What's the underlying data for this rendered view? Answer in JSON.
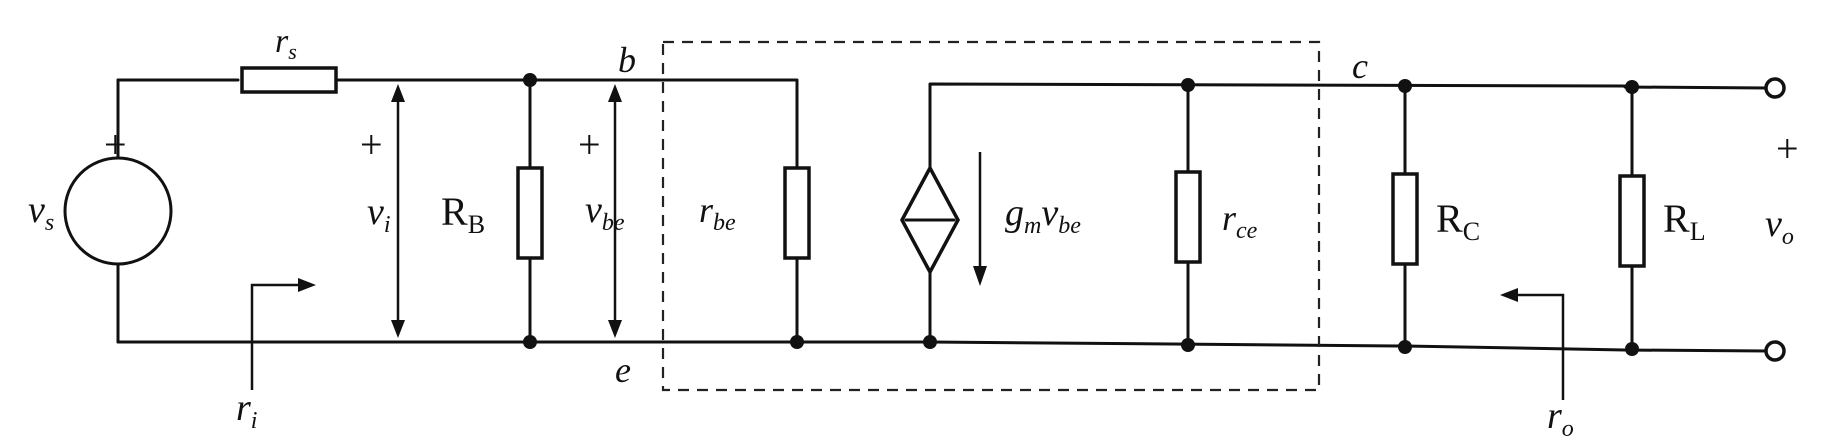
{
  "labels": {
    "rs": {
      "main": "r",
      "sub": "s"
    },
    "vs": {
      "main": "v",
      "sub": "s"
    },
    "vi": {
      "main": "v",
      "sub": "i"
    },
    "RB": {
      "main": "R",
      "sub": "B"
    },
    "vbe": {
      "main": "v",
      "sub": "be"
    },
    "rbe": {
      "main": "r",
      "sub": "be"
    },
    "gm_vbe": {
      "g": "g",
      "gsub": "m",
      "v": "v",
      "vsub": "be"
    },
    "rce": {
      "main": "r",
      "sub": "ce"
    },
    "RC": {
      "main": "R",
      "sub": "C"
    },
    "RL": {
      "main": "R",
      "sub": "L"
    },
    "vo": {
      "main": "v",
      "sub": "o"
    },
    "ri": {
      "main": "r",
      "sub": "i"
    },
    "ro": {
      "main": "r",
      "sub": "o"
    },
    "node_b": "b",
    "node_c": "c",
    "node_e": "e",
    "plus": "+"
  }
}
